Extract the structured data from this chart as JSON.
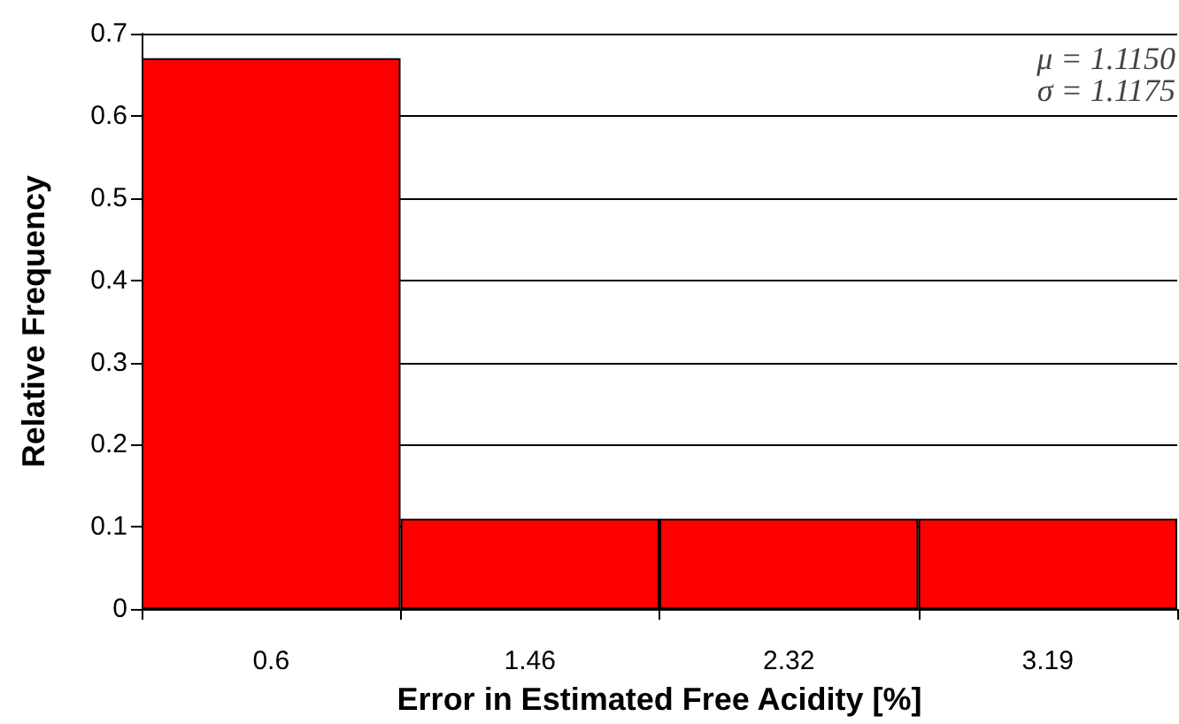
{
  "chart_data": {
    "type": "bar",
    "xlabel": "Error in Estimated Free Acidity [%]",
    "ylabel": "Relative Frequency",
    "categories": [
      "0.6",
      "1.46",
      "2.32",
      "3.19"
    ],
    "values": [
      0.67,
      0.11,
      0.11,
      0.11
    ],
    "color": "#ff0000",
    "ylim": [
      0,
      0.7
    ],
    "yticks": [
      0,
      0.1,
      0.2,
      0.3,
      0.4,
      0.5,
      0.6,
      0.7
    ],
    "grid": "y",
    "annotations": [
      "μ = 1.1150",
      "σ = 1.1175"
    ]
  }
}
